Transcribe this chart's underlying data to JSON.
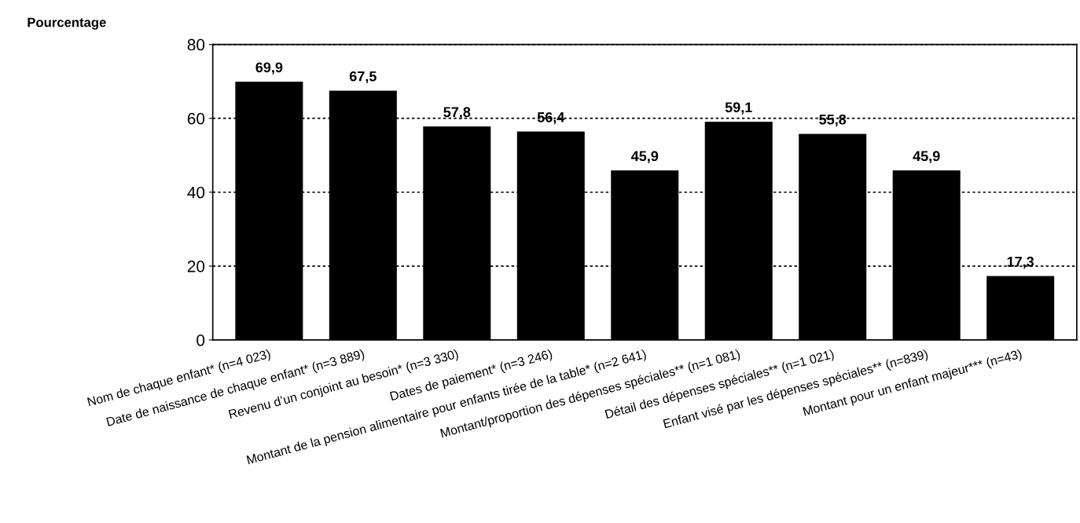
{
  "chart_data": {
    "type": "bar",
    "ylabel": "Pourcentage",
    "categories": [
      "Nom de chaque enfant* (n=4 023)",
      "Date de naissance de chaque enfant* (n=3 889)",
      "Revenu d’un conjoint au besoin* (n=3 330)",
      "Dates de paiement* (n=3 246)",
      "Montant de la pension alimentaire pour enfants tirée de la table* (n=2 641)",
      "Montant/proportion des dépenses spéciales** (n=1 081)",
      "Détail des dépenses spéciales** (n=1 021)",
      "Enfant visé par les dépenses spéciales** (n=839)",
      "Montant pour un enfant majeur*** (n=43)"
    ],
    "values": [
      69.9,
      67.5,
      57.8,
      56.4,
      45.9,
      59.1,
      55.8,
      45.9,
      17.3
    ],
    "value_labels": [
      "69,9",
      "67,5",
      "57,8",
      "56,4",
      "45,9",
      "59,1",
      "55,8",
      "45,9",
      "17,3"
    ],
    "color": "#000000",
    "ylim": [
      0,
      80
    ],
    "yticks": [
      0,
      20,
      40,
      60,
      80
    ],
    "grid": "y",
    "legend": false
  }
}
